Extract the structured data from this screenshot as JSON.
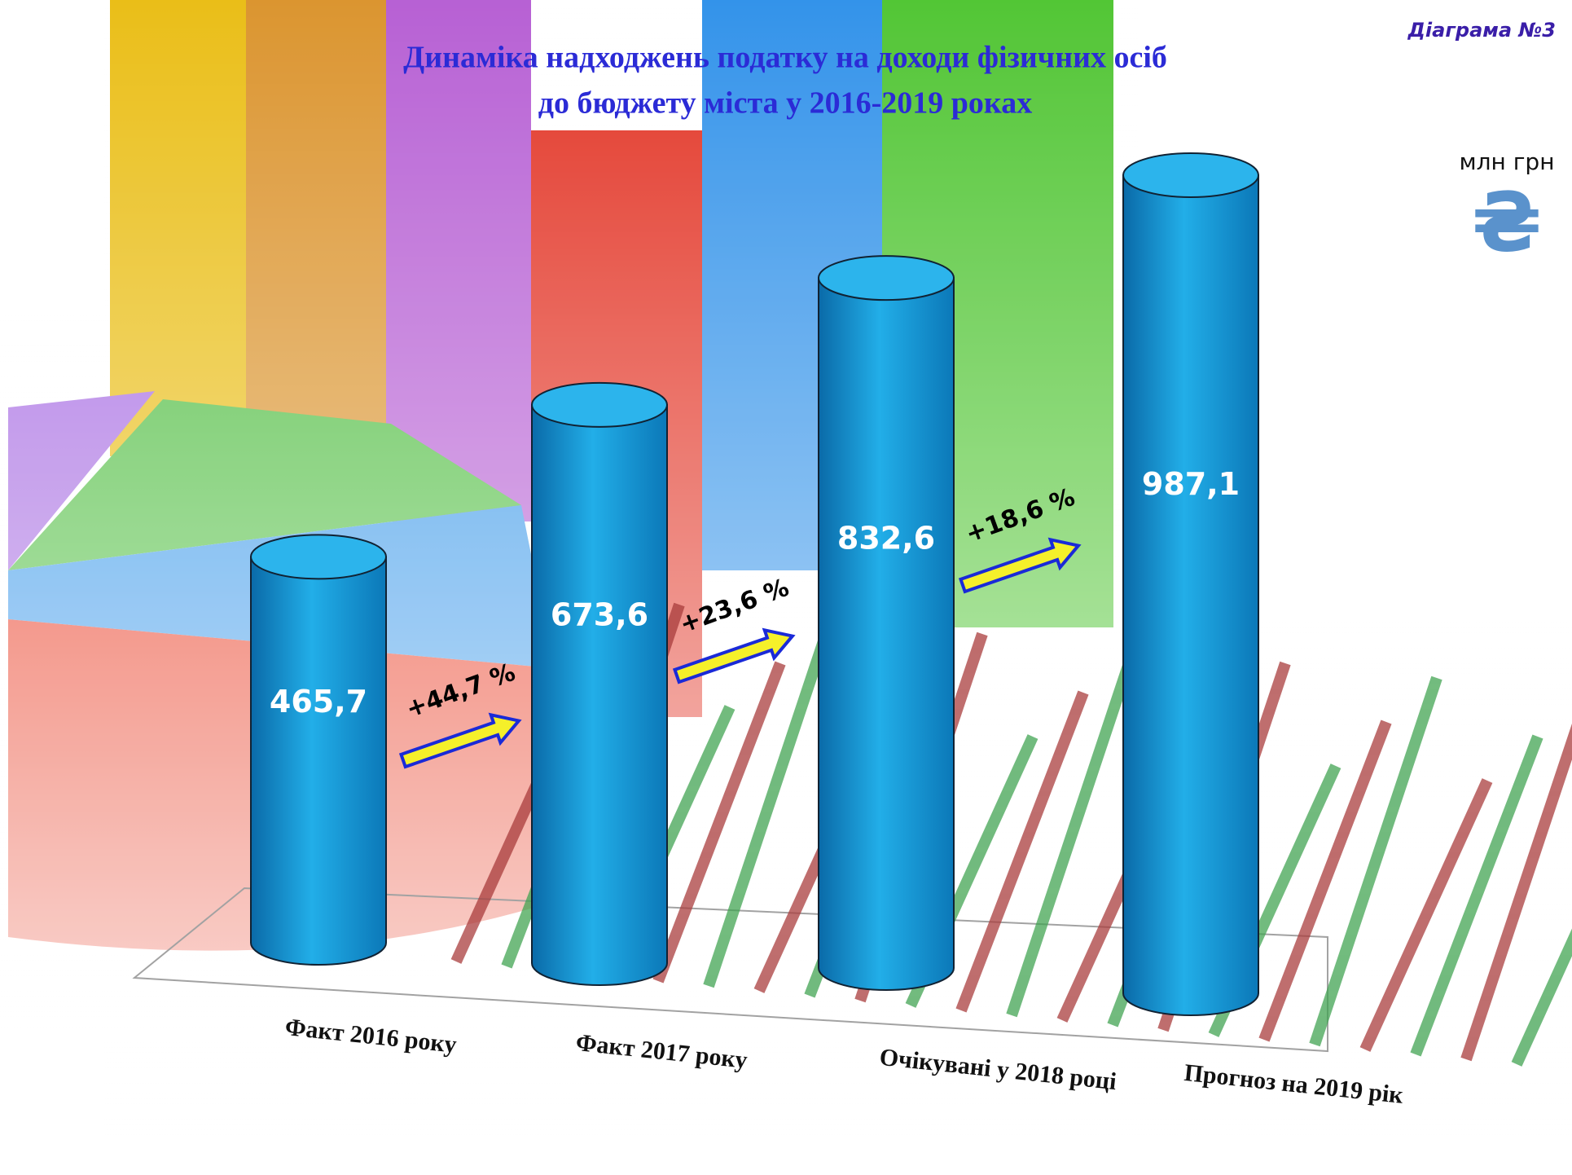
{
  "page_label": "Діаграма №3",
  "unit": "млн грн",
  "currency_symbol": "₴",
  "chart_data": {
    "type": "bar",
    "title": [
      "Динаміка надходжень податку на доходи фізичних осіб",
      "до бюджету міста у 2016-2019 роках"
    ],
    "categories": [
      "Факт 2016 року",
      "Факт 2017 року",
      "Очікувані у 2018 році",
      "Прогноз на 2019 рік"
    ],
    "values": [
      465.7,
      673.6,
      832.6,
      987.1
    ],
    "value_labels": [
      "465,7",
      "673,6",
      "832,6",
      "987,1"
    ],
    "color": "#1ea0dc",
    "annotations": [
      "+44,7 %",
      "+23,6 %",
      "+18,6 %"
    ]
  }
}
